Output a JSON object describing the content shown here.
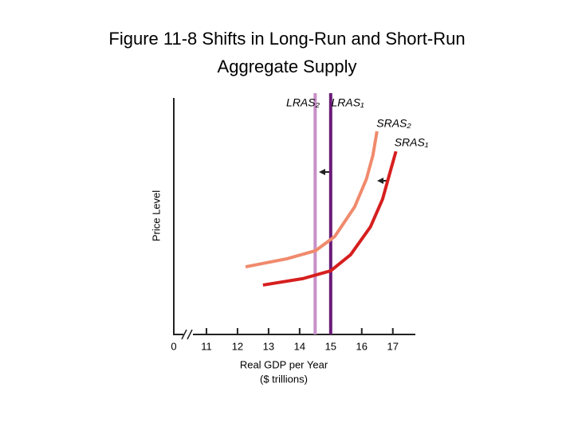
{
  "chart_data": {
    "type": "line",
    "title": [
      "Figure 11-8  Shifts in Long-Run and Short-Run",
      "Aggregate Supply"
    ],
    "y_label": "Price Level",
    "x_label": [
      "Real GDP per Year",
      "($ trillions)"
    ],
    "x_origin": 0,
    "xlim": [
      10,
      17.7
    ],
    "xticks": [
      11,
      12,
      13,
      14,
      15,
      16,
      17
    ],
    "ylim": [
      0,
      100
    ],
    "series": [
      {
        "name": "LRAS₂",
        "color": "#c88fc8",
        "x": [
          14.5,
          14.5
        ],
        "values": [
          0,
          102
        ]
      },
      {
        "name": "LRAS₁",
        "color": "#6a1b78",
        "x": [
          15,
          15
        ],
        "values": [
          0,
          102
        ]
      },
      {
        "name": "SRAS₂",
        "color": "#f08a6c",
        "x": [
          12.26,
          13.59,
          14.51,
          15.13,
          15.77,
          16.15,
          16.36,
          16.49
        ],
        "values": [
          28.6,
          32.0,
          35.4,
          41.4,
          53.9,
          65.7,
          75.8,
          85.9
        ]
      },
      {
        "name": "SRAS₁",
        "color": "#d61f1f",
        "x": [
          12.82,
          14.1,
          15,
          15.64,
          16.28,
          16.67,
          16.92,
          17.1
        ],
        "values": [
          20.9,
          23.6,
          26.9,
          33.7,
          45.5,
          57.2,
          69.0,
          77.4
        ]
      }
    ]
  }
}
